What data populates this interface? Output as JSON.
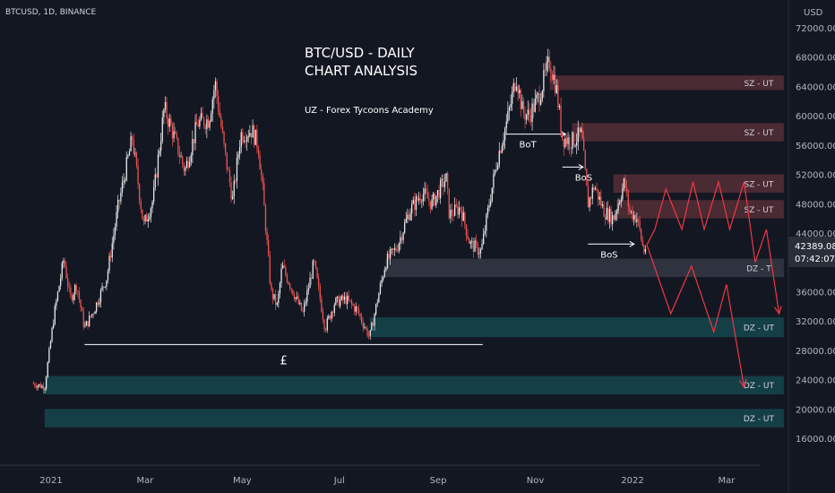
{
  "chart_data": {
    "type": "candlestick",
    "symbol": "BTCUSD, 1D, BINANCE",
    "title_line1": "BTC/USD - DAILY",
    "title_line2": "CHART ANALYSIS",
    "subtitle": "UZ - Forex Tycoons Academy",
    "currency": "USD",
    "current_price": "42389.08",
    "countdown": "07:42:07",
    "y_ticks": [
      "72000.00",
      "68000.00",
      "64000.00",
      "60000.00",
      "56000.00",
      "52000.00",
      "48000.00",
      "44000.00",
      "40000.00",
      "36000.00",
      "32000.00",
      "28000.00",
      "24000.00",
      "20000.00",
      "16000.00"
    ],
    "y_tick_values": [
      72000,
      68000,
      64000,
      60000,
      56000,
      52000,
      48000,
      44000,
      40000,
      36000,
      32000,
      28000,
      24000,
      20000,
      16000
    ],
    "x_ticks": [
      "2021",
      "Mar",
      "May",
      "Jul",
      "Sep",
      "Nov",
      "2022",
      "Mar"
    ],
    "x_tick_dates": [
      "2021-01-01",
      "2021-03-01",
      "2021-05-01",
      "2021-07-01",
      "2021-09-01",
      "2021-11-01",
      "2022-01-01",
      "2022-03-01"
    ],
    "colors": {
      "up": "#e8e8ea",
      "down": "#ef5350",
      "supply": "#4a2a33",
      "demand": "#143f47",
      "demand_t": "#2e333f",
      "line": "#ffffff",
      "projection": "#f23645"
    },
    "price_path": [
      [
        "2020-12-20",
        23500
      ],
      [
        "2020-12-28",
        23000
      ],
      [
        "2021-01-03",
        33000
      ],
      [
        "2021-01-09",
        40500
      ],
      [
        "2021-01-13",
        35000
      ],
      [
        "2021-01-17",
        37000
      ],
      [
        "2021-01-22",
        31000
      ],
      [
        "2021-01-28",
        33500
      ],
      [
        "2021-02-05",
        38000
      ],
      [
        "2021-02-12",
        47500
      ],
      [
        "2021-02-21",
        57000
      ],
      [
        "2021-02-28",
        45000
      ],
      [
        "2021-03-06",
        48500
      ],
      [
        "2021-03-13",
        61000
      ],
      [
        "2021-03-18",
        58000
      ],
      [
        "2021-03-26",
        52500
      ],
      [
        "2021-04-03",
        59000
      ],
      [
        "2021-04-10",
        59500
      ],
      [
        "2021-04-14",
        64500
      ],
      [
        "2021-04-20",
        55000
      ],
      [
        "2021-04-25",
        48500
      ],
      [
        "2021-04-30",
        57500
      ],
      [
        "2021-05-07",
        58000
      ],
      [
        "2021-05-11",
        56000
      ],
      [
        "2021-05-14",
        49500
      ],
      [
        "2021-05-19",
        36000
      ],
      [
        "2021-05-23",
        34000
      ],
      [
        "2021-05-26",
        39500
      ],
      [
        "2021-06-01",
        36500
      ],
      [
        "2021-06-08",
        33000
      ],
      [
        "2021-06-15",
        40000
      ],
      [
        "2021-06-22",
        31000
      ],
      [
        "2021-06-28",
        34500
      ],
      [
        "2021-07-05",
        35000
      ],
      [
        "2021-07-12",
        33500
      ],
      [
        "2021-07-20",
        29800
      ],
      [
        "2021-07-25",
        35000
      ],
      [
        "2021-07-30",
        40000
      ],
      [
        "2021-08-06",
        42000
      ],
      [
        "2021-08-14",
        47000
      ],
      [
        "2021-08-22",
        49500
      ],
      [
        "2021-08-28",
        48000
      ],
      [
        "2021-09-06",
        51500
      ],
      [
        "2021-09-08",
        46500
      ],
      [
        "2021-09-15",
        47500
      ],
      [
        "2021-09-21",
        42500
      ],
      [
        "2021-09-28",
        41500
      ],
      [
        "2021-10-03",
        48000
      ],
      [
        "2021-10-08",
        54000
      ],
      [
        "2021-10-15",
        60000
      ],
      [
        "2021-10-20",
        65500
      ],
      [
        "2021-10-24",
        60500
      ],
      [
        "2021-10-28",
        60000
      ],
      [
        "2021-11-03",
        62500
      ],
      [
        "2021-11-10",
        67500
      ],
      [
        "2021-11-14",
        64000
      ],
      [
        "2021-11-18",
        57000
      ],
      [
        "2021-11-24",
        56500
      ],
      [
        "2021-11-30",
        57500
      ],
      [
        "2021-12-04",
        48000
      ],
      [
        "2021-12-08",
        50500
      ],
      [
        "2021-12-14",
        47000
      ],
      [
        "2021-12-20",
        46000
      ],
      [
        "2021-12-27",
        51000
      ],
      [
        "2021-12-30",
        47000
      ],
      [
        "2022-01-04",
        46000
      ],
      [
        "2022-01-08",
        41500
      ],
      [
        "2022-01-10",
        42389
      ]
    ],
    "zones": [
      {
        "label": "SZ - UT",
        "start": "2021-11-10",
        "end": "2022-04-06",
        "low": 63500,
        "high": 65500,
        "kind": "supply"
      },
      {
        "label": "SZ - UT",
        "start": "2021-11-24",
        "end": "2022-04-06",
        "low": 56500,
        "high": 59000,
        "kind": "supply"
      },
      {
        "label": "SZ - UT",
        "start": "2021-12-20",
        "end": "2022-04-06",
        "low": 49500,
        "high": 52000,
        "kind": "supply"
      },
      {
        "label": "SZ - UT",
        "start": "2021-12-22",
        "end": "2022-04-06",
        "low": 46000,
        "high": 48500,
        "kind": "supply"
      },
      {
        "label": "DZ - T",
        "start": "2021-07-30",
        "end": "2022-04-06",
        "low": 38000,
        "high": 40500,
        "kind": "demand_t"
      },
      {
        "label": "DZ - UT",
        "start": "2021-07-20",
        "end": "2022-04-06",
        "low": 29800,
        "high": 32500,
        "kind": "demand"
      },
      {
        "label": "DZ - UT",
        "start": "2020-12-28",
        "end": "2022-04-06",
        "low": 22000,
        "high": 24500,
        "kind": "demand"
      },
      {
        "label": "DZ - UT",
        "start": "2020-12-28",
        "end": "2022-04-06",
        "low": 17500,
        "high": 20000,
        "kind": "demand"
      }
    ],
    "equal_lows": {
      "start": "2021-01-22",
      "end": "2021-09-29",
      "price": 28800,
      "label": "£"
    },
    "structure_marks": [
      {
        "label": "BoT",
        "start": "2021-10-14",
        "end": "2021-11-20",
        "price": 57500
      },
      {
        "label": "BoS",
        "start": "2021-11-18",
        "end": "2021-12-01",
        "price": 53000
      },
      {
        "label": "BoS",
        "start": "2021-12-04",
        "end": "2022-01-02",
        "price": 42500
      }
    ],
    "projections": [
      [
        [
          "2022-01-10",
          42389
        ],
        [
          "2022-01-15",
          44500
        ],
        [
          "2022-01-22",
          50000
        ],
        [
          "2022-02-01",
          44500
        ],
        [
          "2022-02-08",
          51000
        ],
        [
          "2022-02-15",
          44500
        ],
        [
          "2022-02-24",
          51000
        ],
        [
          "2022-03-03",
          44500
        ],
        [
          "2022-03-12",
          51000
        ],
        [
          "2022-03-19",
          40000
        ],
        [
          "2022-03-26",
          44500
        ],
        [
          "2022-04-03",
          33000
        ]
      ],
      [
        [
          "2022-01-10",
          42389
        ],
        [
          "2022-01-25",
          33000
        ],
        [
          "2022-02-07",
          39500
        ],
        [
          "2022-02-21",
          30500
        ],
        [
          "2022-03-01",
          37000
        ],
        [
          "2022-03-12",
          23000
        ]
      ]
    ]
  }
}
